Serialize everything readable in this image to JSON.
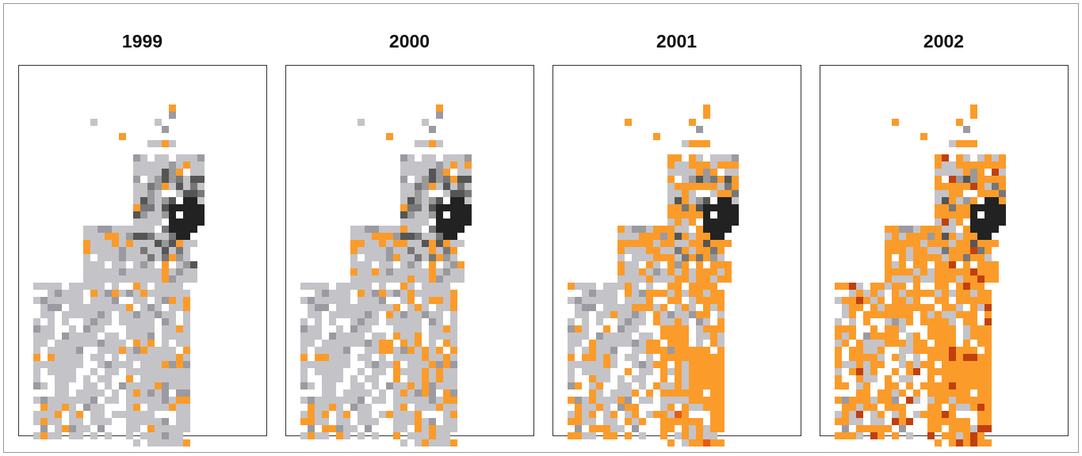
{
  "panels": [
    {
      "title": "1999"
    },
    {
      "title": "2000"
    },
    {
      "title": "2001"
    },
    {
      "title": "2002"
    }
  ]
}
